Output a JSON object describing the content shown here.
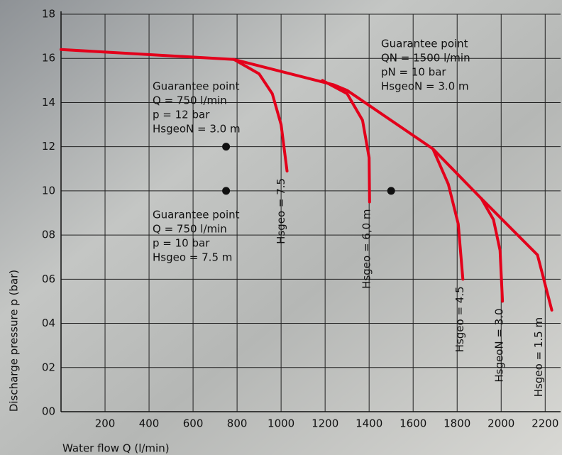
{
  "chart_data": {
    "type": "line",
    "xlabel": "Water flow Q (l/min)",
    "ylabel": "Discharge pressure p (bar)",
    "xlim": [
      0,
      2270
    ],
    "ylim": [
      0,
      18
    ],
    "xticks": [
      200,
      400,
      600,
      800,
      1000,
      1200,
      1400,
      1600,
      1800,
      2000,
      2200
    ],
    "yticks": [
      {
        "value": 0,
        "label": "00"
      },
      {
        "value": 2,
        "label": "02"
      },
      {
        "value": 4,
        "label": "04"
      },
      {
        "value": 6,
        "label": "06"
      },
      {
        "value": 8,
        "label": "08"
      },
      10,
      12,
      14,
      16,
      18
    ],
    "grid": true,
    "series": [
      {
        "name": "Hsgeo = 7.5",
        "color": "#e3001b",
        "x": [
          786,
          900,
          960,
          1000,
          1027
        ],
        "values": [
          15.95,
          15.3,
          14.4,
          13.0,
          10.9
        ]
      },
      {
        "name": "Hsgeo = 6,0 m",
        "color": "#e3001b",
        "x": [
          1188,
          1300,
          1370,
          1400,
          1402
        ],
        "values": [
          15.0,
          14.4,
          13.2,
          11.5,
          9.5
        ]
      },
      {
        "name": "Hsgeo = 4.5",
        "color": "#e3001b",
        "x": [
          1690,
          1760,
          1805,
          1826
        ],
        "values": [
          11.9,
          10.3,
          8.5,
          6.0
        ]
      },
      {
        "name": "HsgeoN = 3.0",
        "color": "#e3001b",
        "x": [
          1910,
          1965,
          1995,
          2006
        ],
        "values": [
          9.65,
          8.7,
          7.3,
          5.0
        ]
      },
      {
        "name": "Hsgeo = 1.5 m",
        "color": "#e3001b",
        "x": [
          0,
          786,
          1240,
          1300,
          1690,
          1910,
          2165,
          2230
        ],
        "values": [
          16.4,
          15.95,
          14.8,
          14.55,
          11.9,
          9.65,
          7.1,
          4.6
        ]
      }
    ],
    "points": {
      "color": "#111111",
      "x": [
        750,
        750,
        1500
      ],
      "values": [
        12,
        10,
        10
      ]
    },
    "annotations": [
      {
        "lines": [
          "Guarantee point",
          "QN = 1500 l/min",
          "pN = 10 bar",
          "HsgeoN = 3.0 m"
        ]
      },
      {
        "lines": [
          "Guarantee point",
          "Q = 750 l/min",
          "p = 12 bar",
          "HsgeoN = 3.0 m"
        ]
      },
      {
        "lines": [
          "Guarantee point",
          "Q = 750 l/min",
          "p = 10 bar",
          "Hsgeo = 7.5 m"
        ]
      }
    ]
  }
}
